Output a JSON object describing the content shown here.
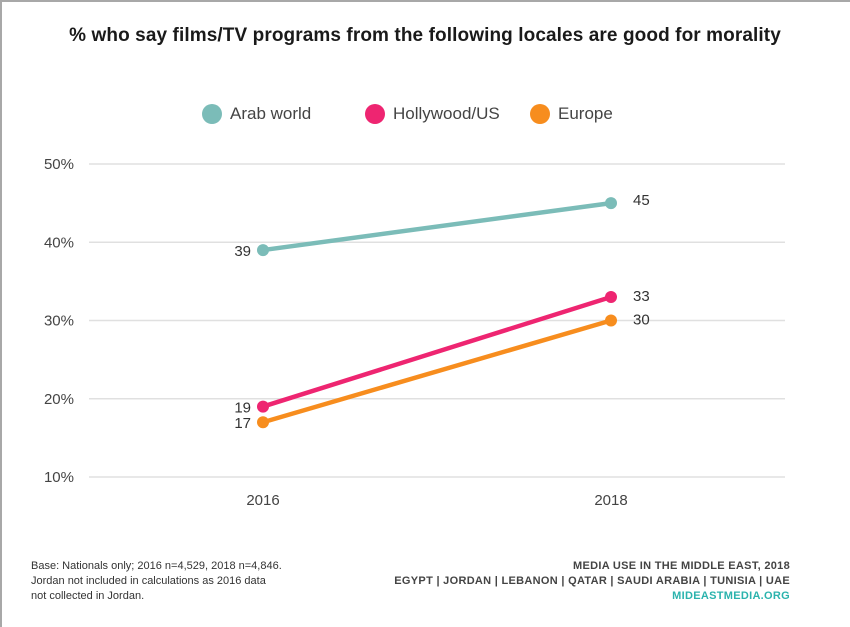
{
  "chart_data": {
    "type": "line",
    "title": "% who say films/TV programs from the following locales are good for morality",
    "x": [
      "2016",
      "2018"
    ],
    "series": [
      {
        "name": "Arab world",
        "color": "#7bbcb8",
        "values": [
          39,
          45
        ]
      },
      {
        "name": "Hollywood/US",
        "color": "#ee2571",
        "values": [
          19,
          33
        ]
      },
      {
        "name": "Europe",
        "color": "#f78d1e",
        "values": [
          17,
          30
        ]
      }
    ],
    "yticks": [
      10,
      20,
      30,
      40,
      50
    ],
    "ytick_labels": [
      "10%",
      "20%",
      "30%",
      "40%",
      "50%"
    ],
    "ylim": [
      10,
      50
    ],
    "xlabel": "",
    "ylabel": "",
    "grid": true,
    "legend": "top-center"
  },
  "footnote": {
    "lines": [
      "Base: Nationals only; 2016 n=4,529, 2018 n=4,846.",
      "Jordan not included in calculations as 2016 data",
      "not collected in Jordan."
    ]
  },
  "credits": {
    "line1": "MEDIA USE IN THE MIDDLE EAST, 2018",
    "line2": "EGYPT | JORDAN | LEBANON | QATAR | SAUDI ARABIA | TUNISIA | UAE",
    "site": "MIDEASTMEDIA.ORG"
  }
}
